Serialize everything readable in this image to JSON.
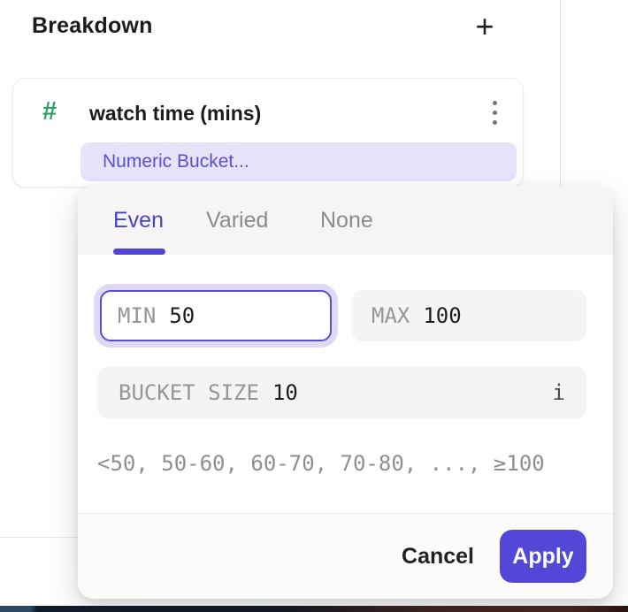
{
  "header": {
    "title": "Breakdown",
    "add_button": "+"
  },
  "card": {
    "type_icon": "#",
    "title": "watch time (mins)",
    "bucket_pill": "Numeric Bucket..."
  },
  "dialog": {
    "tabs": [
      {
        "label": "Even",
        "active": true
      },
      {
        "label": "Varied",
        "active": false
      },
      {
        "label": "None",
        "active": false
      }
    ],
    "fields": {
      "min": {
        "label": "MIN",
        "value": "50",
        "focused": true
      },
      "max": {
        "label": "MAX",
        "value": "100"
      },
      "bucket_size": {
        "label": "BUCKET SIZE",
        "value": "10",
        "info_icon": "i"
      }
    },
    "preview": "<50, 50-60, 60-70, 70-80, ..., ≥100",
    "actions": {
      "cancel": "Cancel",
      "apply": "Apply"
    }
  },
  "colors": {
    "accent": "#4f46d2",
    "apply_button": "#5347d8",
    "pill_background": "#e7e3fa",
    "pill_text": "#594fd2",
    "focus_ring": "#ddd9f6",
    "field_background": "#f4f4f5",
    "numeric_type_green": "#2e9e68"
  }
}
